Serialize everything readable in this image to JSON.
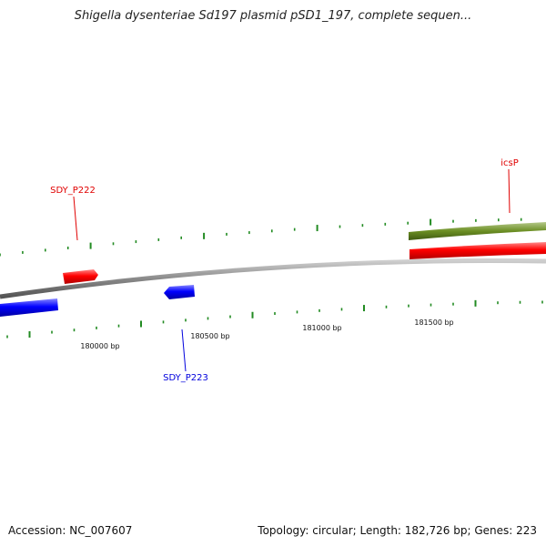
{
  "title": "Shigella dysenteriae Sd197 plasmid pSD1_197, complete sequen...",
  "footer": {
    "accession": "Accession: NC_007607",
    "summary": "Topology: circular; Length: 182,726 bp; Genes: 223"
  },
  "scale_labels": [
    "180000 bp",
    "180500 bp",
    "181000 bp",
    "181500 bp"
  ],
  "genes": [
    {
      "label": "SDY_P222",
      "color": "#e00000"
    },
    {
      "label": "SDY_P223",
      "color": "#0000dd"
    },
    {
      "label": "icsP",
      "color": "#e00000"
    }
  ],
  "colors": {
    "backbone": "#888888",
    "forward": "#ff0000",
    "reverse": "#0000ff",
    "feature_track": "#6b8e23",
    "ticks": "#228b22"
  }
}
